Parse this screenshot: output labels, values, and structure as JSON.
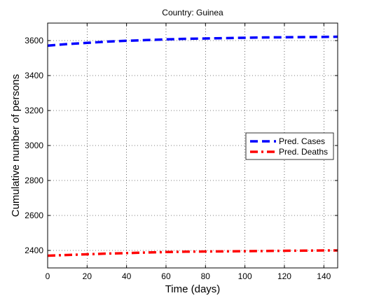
{
  "chart_data": {
    "type": "line",
    "title": "Country: Guinea",
    "xlabel": "Time (days)",
    "ylabel": "Cumulative number of persons",
    "xlim": [
      0,
      147
    ],
    "ylim": [
      2300,
      3700
    ],
    "x_ticks": [
      0,
      20,
      40,
      60,
      80,
      100,
      120,
      140
    ],
    "y_ticks": [
      2400,
      2600,
      2800,
      3000,
      3200,
      3400,
      3600
    ],
    "x_tick_labels": [
      "0",
      "20",
      "40",
      "60",
      "80",
      "100",
      "120",
      "140"
    ],
    "y_tick_labels": [
      "2400",
      "2600",
      "2800",
      "3000",
      "3200",
      "3400",
      "3600"
    ],
    "grid": true,
    "legend_position": "right",
    "series": [
      {
        "name": "Pred. Cases",
        "color": "#0000ff",
        "line_style": "dashed",
        "x": [
          0,
          10,
          20,
          30,
          40,
          50,
          60,
          70,
          80,
          90,
          100,
          110,
          120,
          130,
          140,
          147
        ],
        "y": [
          3571,
          3580,
          3587,
          3594,
          3599,
          3603,
          3607,
          3610,
          3612,
          3614,
          3616,
          3618,
          3619,
          3620,
          3621,
          3622
        ]
      },
      {
        "name": "Pred. Deaths",
        "color": "#ff0000",
        "line_style": "dash-dot",
        "x": [
          0,
          10,
          20,
          30,
          40,
          50,
          60,
          70,
          80,
          90,
          100,
          110,
          120,
          130,
          140,
          147
        ],
        "y": [
          2370,
          2374,
          2378,
          2382,
          2385,
          2388,
          2391,
          2393,
          2394,
          2395,
          2396,
          2397,
          2398,
          2399,
          2400,
          2400
        ]
      }
    ]
  }
}
